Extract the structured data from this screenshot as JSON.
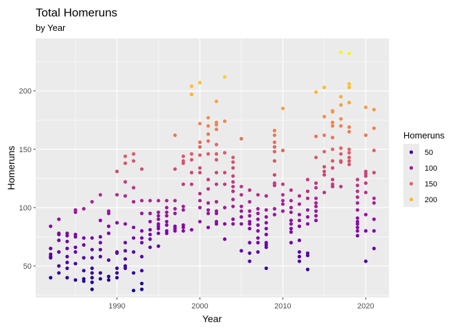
{
  "chart_data": {
    "type": "scatter",
    "title": "Total Homeruns",
    "subtitle": "by Year",
    "xlabel": "Year",
    "ylabel": "Homeruns",
    "xlim": [
      1980.2,
      2022.8
    ],
    "ylim": [
      23,
      245
    ],
    "xticks": [
      1990,
      2000,
      2010,
      2020
    ],
    "yticks": [
      50,
      100,
      150,
      200
    ],
    "grid": true,
    "legend": {
      "title": "Homeruns",
      "position": "right",
      "entries": [
        {
          "label": "50",
          "value": 50
        },
        {
          "label": "100",
          "value": 100
        },
        {
          "label": "150",
          "value": 150
        },
        {
          "label": "200",
          "value": 200
        }
      ]
    },
    "color_scale": {
      "name": "plasma",
      "domain": [
        28,
        233
      ],
      "stops": [
        "#0d0887",
        "#5402a3",
        "#8b0aa5",
        "#b93289",
        "#db5c68",
        "#f48849",
        "#febc2a",
        "#f0f921"
      ]
    },
    "points": [
      [
        1982,
        84
      ],
      [
        1982,
        65
      ],
      [
        1982,
        60
      ],
      [
        1982,
        58
      ],
      [
        1982,
        57
      ],
      [
        1982,
        40
      ],
      [
        1983,
        90
      ],
      [
        1983,
        78
      ],
      [
        1983,
        77
      ],
      [
        1983,
        72
      ],
      [
        1983,
        62
      ],
      [
        1983,
        50
      ],
      [
        1983,
        44
      ],
      [
        1984,
        78
      ],
      [
        1984,
        76
      ],
      [
        1984,
        71
      ],
      [
        1984,
        65
      ],
      [
        1984,
        58
      ],
      [
        1984,
        53
      ],
      [
        1984,
        48
      ],
      [
        1984,
        40
      ],
      [
        1985,
        98
      ],
      [
        1985,
        96
      ],
      [
        1985,
        77
      ],
      [
        1985,
        75
      ],
      [
        1985,
        66
      ],
      [
        1985,
        62
      ],
      [
        1985,
        52
      ],
      [
        1985,
        38
      ],
      [
        1986,
        99
      ],
      [
        1986,
        74
      ],
      [
        1986,
        68
      ],
      [
        1986,
        57
      ],
      [
        1986,
        46
      ],
      [
        1986,
        39
      ],
      [
        1986,
        37
      ],
      [
        1987,
        105
      ],
      [
        1987,
        74
      ],
      [
        1987,
        64
      ],
      [
        1987,
        57
      ],
      [
        1987,
        48
      ],
      [
        1987,
        44
      ],
      [
        1987,
        40
      ],
      [
        1987,
        36
      ],
      [
        1987,
        30
      ],
      [
        1988,
        111
      ],
      [
        1988,
        89
      ],
      [
        1988,
        75
      ],
      [
        1988,
        70
      ],
      [
        1988,
        64
      ],
      [
        1988,
        58
      ],
      [
        1988,
        44
      ],
      [
        1988,
        39
      ],
      [
        1989,
        97
      ],
      [
        1989,
        95
      ],
      [
        1989,
        84
      ],
      [
        1989,
        78
      ],
      [
        1989,
        55
      ],
      [
        1989,
        41
      ],
      [
        1989,
        38
      ],
      [
        1990,
        131
      ],
      [
        1990,
        111
      ],
      [
        1990,
        87
      ],
      [
        1990,
        62
      ],
      [
        1990,
        61
      ],
      [
        1990,
        48
      ],
      [
        1990,
        44
      ],
      [
        1990,
        40
      ],
      [
        1991,
        144
      ],
      [
        1991,
        138
      ],
      [
        1991,
        122
      ],
      [
        1991,
        110
      ],
      [
        1991,
        86
      ],
      [
        1991,
        70
      ],
      [
        1991,
        63
      ],
      [
        1991,
        56
      ],
      [
        1991,
        50
      ],
      [
        1991,
        48
      ],
      [
        1992,
        146
      ],
      [
        1992,
        140
      ],
      [
        1992,
        117
      ],
      [
        1992,
        105
      ],
      [
        1992,
        83
      ],
      [
        1992,
        74
      ],
      [
        1992,
        62
      ],
      [
        1992,
        44
      ],
      [
        1992,
        29
      ],
      [
        1993,
        133
      ],
      [
        1993,
        106
      ],
      [
        1993,
        95
      ],
      [
        1993,
        80
      ],
      [
        1993,
        74
      ],
      [
        1993,
        70
      ],
      [
        1993,
        58
      ],
      [
        1993,
        46
      ],
      [
        1993,
        35
      ],
      [
        1993,
        30
      ],
      [
        1994,
        106
      ],
      [
        1994,
        95
      ],
      [
        1994,
        88
      ],
      [
        1994,
        81
      ],
      [
        1994,
        77
      ],
      [
        1994,
        73
      ],
      [
        1994,
        66
      ],
      [
        1995,
        106
      ],
      [
        1995,
        96
      ],
      [
        1995,
        93
      ],
      [
        1995,
        90
      ],
      [
        1995,
        86
      ],
      [
        1995,
        84
      ],
      [
        1995,
        82
      ],
      [
        1995,
        78
      ],
      [
        1995,
        67
      ],
      [
        1996,
        106
      ],
      [
        1996,
        100
      ],
      [
        1996,
        96
      ],
      [
        1996,
        93
      ],
      [
        1996,
        88
      ],
      [
        1996,
        85
      ],
      [
        1996,
        80
      ],
      [
        1996,
        78
      ],
      [
        1997,
        162
      ],
      [
        1997,
        133
      ],
      [
        1997,
        106
      ],
      [
        1997,
        99
      ],
      [
        1997,
        95
      ],
      [
        1997,
        84
      ],
      [
        1997,
        82
      ],
      [
        1997,
        80
      ],
      [
        1998,
        144
      ],
      [
        1998,
        140
      ],
      [
        1998,
        138
      ],
      [
        1998,
        120
      ],
      [
        1998,
        101
      ],
      [
        1998,
        98
      ],
      [
        1998,
        85
      ],
      [
        1998,
        83
      ],
      [
        1998,
        80
      ],
      [
        1999,
        204
      ],
      [
        1999,
        197
      ],
      [
        1999,
        146
      ],
      [
        1999,
        141
      ],
      [
        1999,
        130
      ],
      [
        1999,
        120
      ],
      [
        1999,
        81
      ],
      [
        2000,
        207
      ],
      [
        2000,
        172
      ],
      [
        2000,
        156
      ],
      [
        2000,
        152
      ],
      [
        2000,
        145
      ],
      [
        2000,
        134
      ],
      [
        2000,
        130
      ],
      [
        2000,
        112
      ],
      [
        2000,
        106
      ],
      [
        2000,
        100
      ],
      [
        2000,
        88
      ],
      [
        2001,
        177
      ],
      [
        2001,
        170
      ],
      [
        2001,
        163
      ],
      [
        2001,
        157
      ],
      [
        2001,
        146
      ],
      [
        2001,
        124
      ],
      [
        2001,
        116
      ],
      [
        2001,
        104
      ],
      [
        2001,
        98
      ],
      [
        2001,
        95
      ],
      [
        2001,
        83
      ],
      [
        2002,
        191
      ],
      [
        2002,
        173
      ],
      [
        2002,
        171
      ],
      [
        2002,
        167
      ],
      [
        2002,
        154
      ],
      [
        2002,
        146
      ],
      [
        2002,
        141
      ],
      [
        2002,
        130
      ],
      [
        2002,
        120
      ],
      [
        2002,
        105
      ],
      [
        2002,
        97
      ],
      [
        2002,
        95
      ],
      [
        2002,
        88
      ],
      [
        2002,
        86
      ],
      [
        2003,
        212
      ],
      [
        2003,
        174
      ],
      [
        2003,
        147
      ],
      [
        2003,
        130
      ],
      [
        2003,
        120
      ],
      [
        2003,
        100
      ],
      [
        2003,
        86
      ],
      [
        2003,
        73
      ],
      [
        2004,
        143
      ],
      [
        2004,
        139
      ],
      [
        2004,
        134
      ],
      [
        2004,
        127
      ],
      [
        2004,
        122
      ],
      [
        2004,
        118
      ],
      [
        2004,
        114
      ],
      [
        2004,
        107
      ],
      [
        2004,
        101
      ],
      [
        2004,
        90
      ],
      [
        2004,
        86
      ],
      [
        2005,
        159
      ],
      [
        2005,
        118
      ],
      [
        2005,
        111
      ],
      [
        2005,
        101
      ],
      [
        2005,
        97
      ],
      [
        2005,
        92
      ],
      [
        2005,
        86
      ],
      [
        2005,
        63
      ],
      [
        2006,
        115
      ],
      [
        2006,
        105
      ],
      [
        2006,
        97
      ],
      [
        2006,
        93
      ],
      [
        2006,
        88
      ],
      [
        2006,
        86
      ],
      [
        2006,
        82
      ],
      [
        2006,
        70
      ],
      [
        2006,
        61
      ],
      [
        2006,
        54
      ],
      [
        2007,
        111
      ],
      [
        2007,
        99
      ],
      [
        2007,
        95
      ],
      [
        2007,
        90
      ],
      [
        2007,
        85
      ],
      [
        2007,
        80
      ],
      [
        2007,
        74
      ],
      [
        2007,
        70
      ],
      [
        2007,
        62
      ],
      [
        2008,
        110
      ],
      [
        2008,
        98
      ],
      [
        2008,
        92
      ],
      [
        2008,
        87
      ],
      [
        2008,
        82
      ],
      [
        2008,
        77
      ],
      [
        2008,
        70
      ],
      [
        2008,
        68
      ],
      [
        2008,
        66
      ],
      [
        2008,
        48
      ],
      [
        2009,
        166
      ],
      [
        2009,
        162
      ],
      [
        2009,
        156
      ],
      [
        2009,
        152
      ],
      [
        2009,
        148
      ],
      [
        2009,
        140
      ],
      [
        2009,
        128
      ],
      [
        2009,
        121
      ],
      [
        2009,
        119
      ],
      [
        2009,
        99
      ],
      [
        2009,
        94
      ],
      [
        2010,
        185
      ],
      [
        2010,
        149
      ],
      [
        2010,
        120
      ],
      [
        2010,
        111
      ],
      [
        2010,
        106
      ],
      [
        2010,
        103
      ],
      [
        2010,
        97
      ],
      [
        2011,
        115
      ],
      [
        2011,
        106
      ],
      [
        2011,
        100
      ],
      [
        2011,
        96
      ],
      [
        2011,
        89
      ],
      [
        2011,
        86
      ],
      [
        2011,
        82
      ],
      [
        2011,
        79
      ],
      [
        2011,
        70
      ],
      [
        2012,
        110
      ],
      [
        2012,
        103
      ],
      [
        2012,
        94
      ],
      [
        2012,
        89
      ],
      [
        2012,
        84
      ],
      [
        2012,
        72
      ],
      [
        2012,
        62
      ],
      [
        2012,
        58
      ],
      [
        2012,
        54
      ],
      [
        2013,
        124
      ],
      [
        2013,
        114
      ],
      [
        2013,
        108
      ],
      [
        2013,
        98
      ],
      [
        2013,
        92
      ],
      [
        2013,
        86
      ],
      [
        2013,
        61
      ],
      [
        2013,
        59
      ],
      [
        2013,
        47
      ],
      [
        2014,
        199
      ],
      [
        2014,
        161
      ],
      [
        2014,
        143
      ],
      [
        2014,
        121
      ],
      [
        2014,
        117
      ],
      [
        2014,
        108
      ],
      [
        2014,
        104
      ],
      [
        2014,
        101
      ],
      [
        2014,
        97
      ],
      [
        2014,
        93
      ],
      [
        2014,
        89
      ],
      [
        2015,
        203
      ],
      [
        2015,
        178
      ],
      [
        2015,
        162
      ],
      [
        2015,
        148
      ],
      [
        2015,
        135
      ],
      [
        2015,
        131
      ],
      [
        2015,
        128
      ],
      [
        2015,
        113
      ],
      [
        2016,
        183
      ],
      [
        2016,
        182
      ],
      [
        2016,
        173
      ],
      [
        2016,
        170
      ],
      [
        2016,
        160
      ],
      [
        2016,
        150
      ],
      [
        2016,
        140
      ],
      [
        2016,
        134
      ],
      [
        2016,
        124
      ],
      [
        2016,
        120
      ],
      [
        2016,
        118
      ],
      [
        2017,
        233
      ],
      [
        2017,
        195
      ],
      [
        2017,
        188
      ],
      [
        2017,
        176
      ],
      [
        2017,
        170
      ],
      [
        2017,
        151
      ],
      [
        2017,
        146
      ],
      [
        2017,
        140
      ],
      [
        2017,
        139
      ],
      [
        2017,
        118
      ],
      [
        2018,
        232
      ],
      [
        2018,
        206
      ],
      [
        2018,
        203
      ],
      [
        2018,
        190
      ],
      [
        2018,
        169
      ],
      [
        2018,
        165
      ],
      [
        2018,
        150
      ],
      [
        2018,
        147
      ],
      [
        2018,
        143
      ],
      [
        2018,
        140
      ],
      [
        2018,
        137
      ],
      [
        2019,
        124
      ],
      [
        2019,
        119
      ],
      [
        2019,
        114
      ],
      [
        2019,
        109
      ],
      [
        2019,
        104
      ],
      [
        2019,
        98
      ],
      [
        2019,
        91
      ],
      [
        2019,
        88
      ],
      [
        2019,
        86
      ],
      [
        2019,
        83
      ],
      [
        2019,
        80
      ],
      [
        2019,
        76
      ],
      [
        2020,
        186
      ],
      [
        2020,
        162
      ],
      [
        2020,
        131
      ],
      [
        2020,
        129
      ],
      [
        2020,
        127
      ],
      [
        2020,
        121
      ],
      [
        2020,
        113
      ],
      [
        2020,
        94
      ],
      [
        2020,
        80
      ],
      [
        2020,
        54
      ],
      [
        2021,
        184
      ],
      [
        2021,
        168
      ],
      [
        2021,
        149
      ],
      [
        2021,
        130
      ],
      [
        2021,
        108
      ],
      [
        2021,
        104
      ],
      [
        2021,
        90
      ],
      [
        2021,
        80
      ],
      [
        2021,
        65
      ]
    ]
  }
}
